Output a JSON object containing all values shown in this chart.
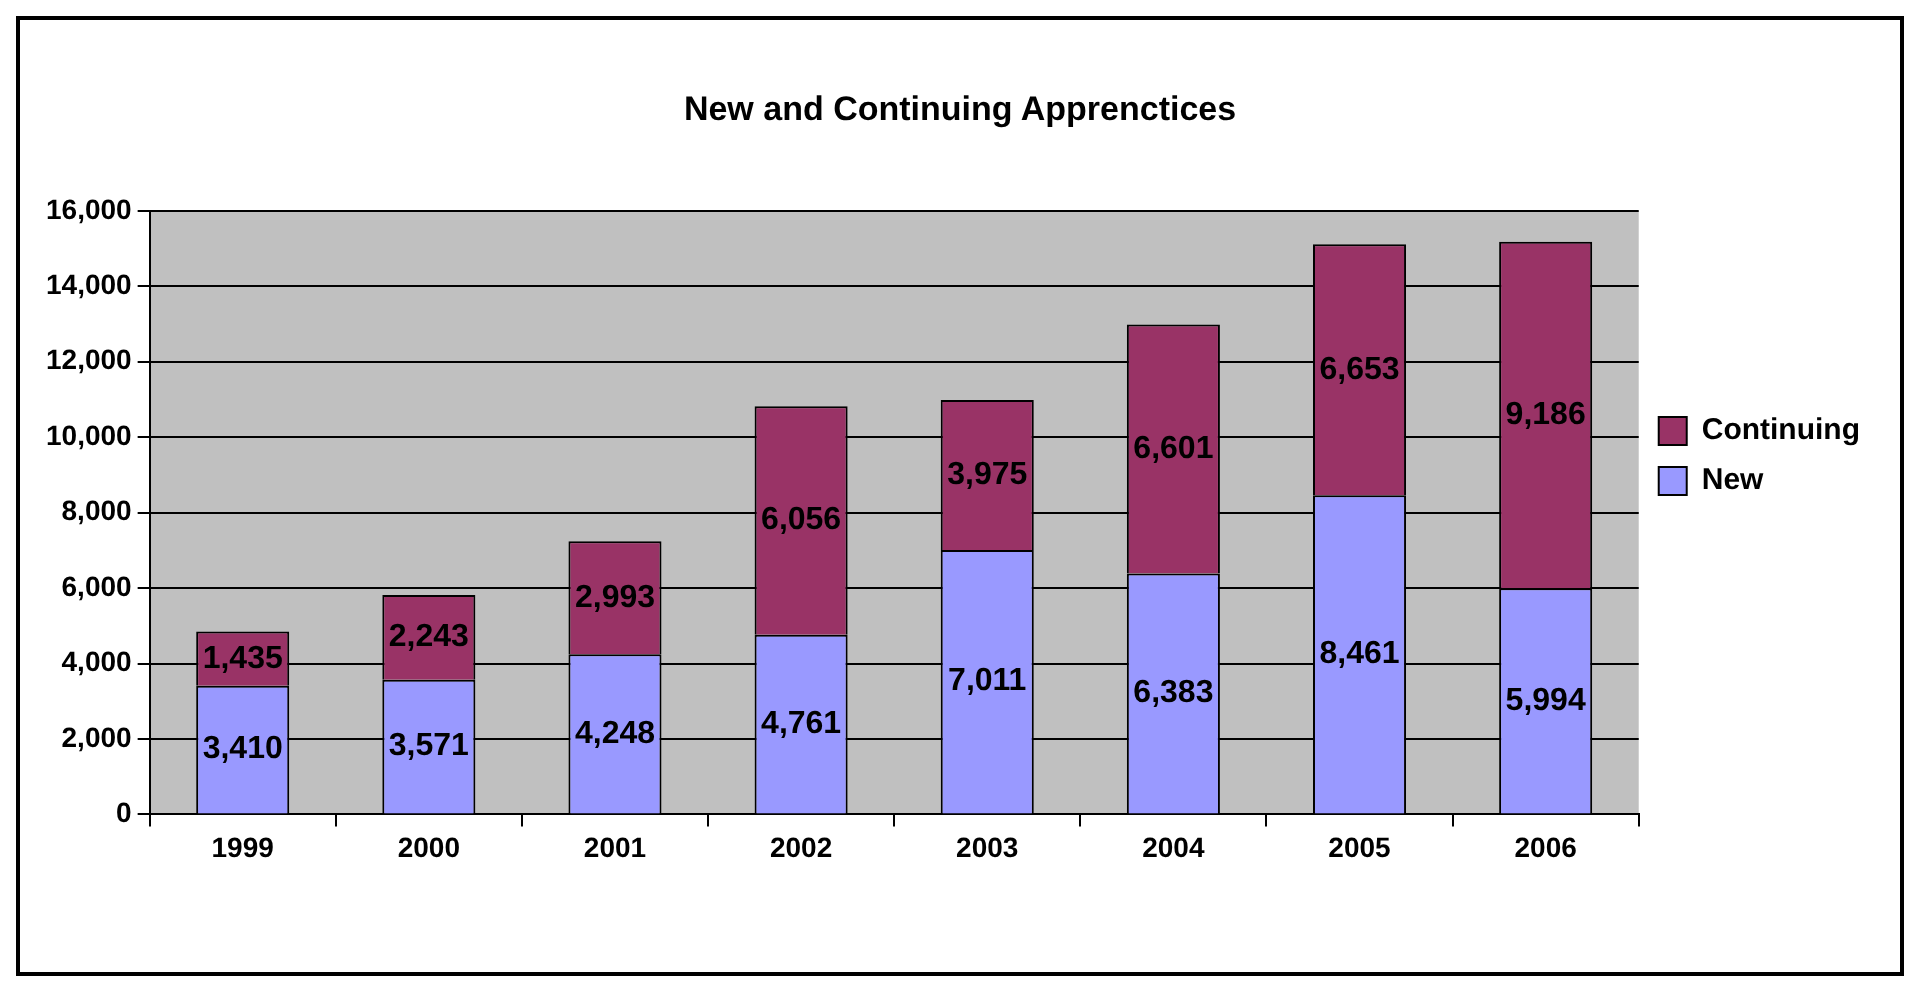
{
  "chart_data": {
    "type": "bar",
    "title": "New and Continuing Apprenctices",
    "categories": [
      "1999",
      "2000",
      "2001",
      "2002",
      "2003",
      "2004",
      "2005",
      "2006"
    ],
    "stacked": true,
    "legend": "right",
    "grid": "y",
    "ylim": [
      0,
      16000
    ],
    "yticks": [
      {
        "value": 0,
        "label": "0"
      },
      {
        "value": 2000,
        "label": "2,000"
      },
      {
        "value": 4000,
        "label": "4,000"
      },
      {
        "value": 6000,
        "label": "6,000"
      },
      {
        "value": 8000,
        "label": "8,000"
      },
      {
        "value": 10000,
        "label": "10,000"
      },
      {
        "value": 12000,
        "label": "12,000"
      },
      {
        "value": 14000,
        "label": "14,000"
      },
      {
        "value": 16000,
        "label": "16,000"
      }
    ],
    "series": [
      {
        "name": "New",
        "color": "#9999ff",
        "values": [
          3410,
          3571,
          4248,
          4761,
          7011,
          6383,
          8461,
          5994
        ],
        "value_labels": [
          "3,410",
          "3,571",
          "4,248",
          "4,761",
          "7,011",
          "6,383",
          "8,461",
          "5,994"
        ]
      },
      {
        "name": "Continuing",
        "color": "#993366",
        "values": [
          1435,
          2243,
          2993,
          6056,
          3975,
          6601,
          6653,
          9186
        ],
        "value_labels": [
          "1,435",
          "2,243",
          "2,993",
          "6,056",
          "3,975",
          "6,601",
          "6,653",
          "9,186"
        ]
      }
    ]
  }
}
